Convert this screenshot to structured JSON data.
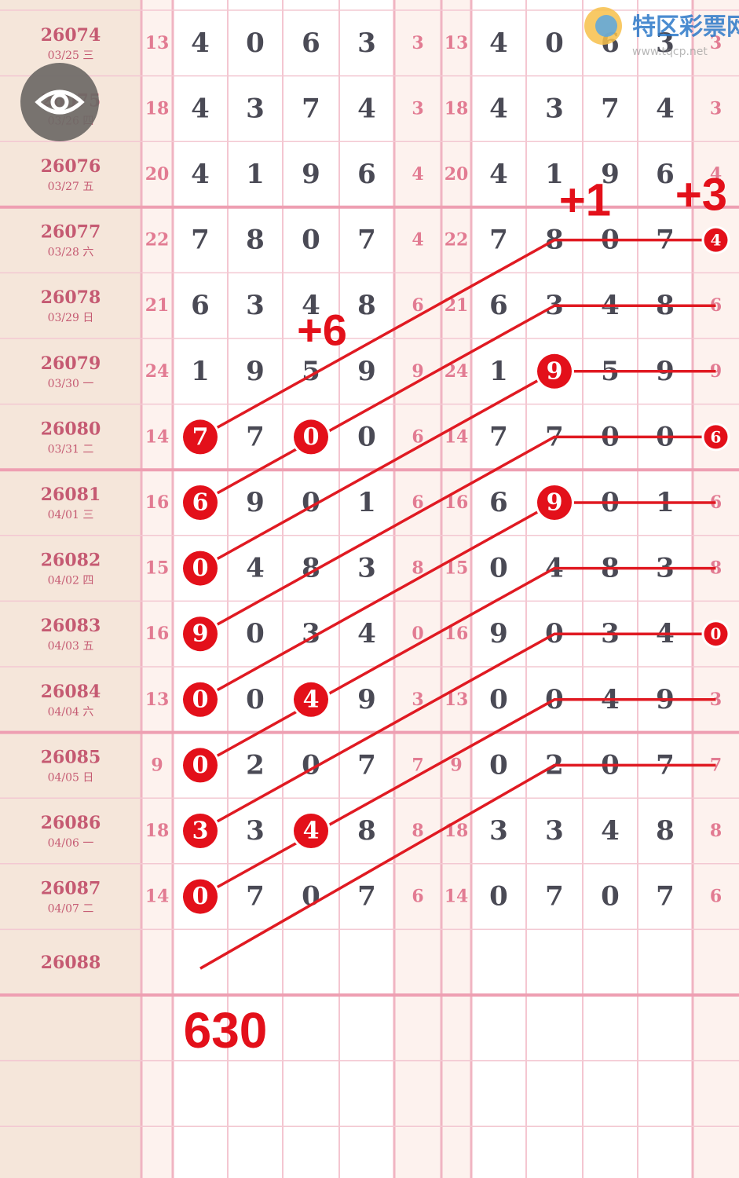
{
  "header": {
    "logo_title": "特区彩票网",
    "logo_url": "www.tqcp.net"
  },
  "table": {
    "rows": [
      {
        "issue": "26074",
        "date": "03/25 三",
        "sum": "13",
        "digits": [
          "4",
          "0",
          "6",
          "3"
        ],
        "tail": "3",
        "sum2": "13",
        "digits2": [
          "4",
          "0",
          "6",
          "3"
        ],
        "tail2": "3"
      },
      {
        "issue": "26075",
        "date": "03/26 四",
        "sum": "18",
        "digits": [
          "4",
          "3",
          "7",
          "4"
        ],
        "tail": "3",
        "sum2": "18",
        "digits2": [
          "4",
          "3",
          "7",
          "4"
        ],
        "tail2": "3"
      },
      {
        "issue": "26076",
        "date": "03/27 五",
        "sum": "20",
        "digits": [
          "4",
          "1",
          "9",
          "6"
        ],
        "tail": "4",
        "sum2": "20",
        "digits2": [
          "4",
          "1",
          "9",
          "6"
        ],
        "tail2": "4"
      },
      {
        "issue": "26077",
        "date": "03/28 六",
        "sum": "22",
        "digits": [
          "7",
          "8",
          "0",
          "7"
        ],
        "tail": "4",
        "sum2": "22",
        "digits2": [
          "7",
          "8",
          "0",
          "7"
        ],
        "tail2": "4"
      },
      {
        "issue": "26078",
        "date": "03/29 日",
        "sum": "21",
        "digits": [
          "6",
          "3",
          "4",
          "8"
        ],
        "tail": "6",
        "sum2": "21",
        "digits2": [
          "6",
          "3",
          "4",
          "8"
        ],
        "tail2": "6"
      },
      {
        "issue": "26079",
        "date": "03/30 一",
        "sum": "24",
        "digits": [
          "1",
          "9",
          "5",
          "9"
        ],
        "tail": "9",
        "sum2": "24",
        "digits2": [
          "1",
          "9",
          "5",
          "9"
        ],
        "tail2": "9"
      },
      {
        "issue": "26080",
        "date": "03/31 二",
        "sum": "14",
        "digits": [
          "7",
          "7",
          "0",
          "0"
        ],
        "tail": "6",
        "sum2": "14",
        "digits2": [
          "7",
          "7",
          "0",
          "0"
        ],
        "tail2": "6"
      },
      {
        "issue": "26081",
        "date": "04/01 三",
        "sum": "16",
        "digits": [
          "6",
          "9",
          "0",
          "1"
        ],
        "tail": "6",
        "sum2": "16",
        "digits2": [
          "6",
          "9",
          "0",
          "1"
        ],
        "tail2": "6"
      },
      {
        "issue": "26082",
        "date": "04/02 四",
        "sum": "15",
        "digits": [
          "0",
          "4",
          "8",
          "3"
        ],
        "tail": "8",
        "sum2": "15",
        "digits2": [
          "0",
          "4",
          "8",
          "3"
        ],
        "tail2": "8"
      },
      {
        "issue": "26083",
        "date": "04/03 五",
        "sum": "16",
        "digits": [
          "9",
          "0",
          "3",
          "4"
        ],
        "tail": "0",
        "sum2": "16",
        "digits2": [
          "9",
          "0",
          "3",
          "4"
        ],
        "tail2": "0"
      },
      {
        "issue": "26084",
        "date": "04/04 六",
        "sum": "13",
        "digits": [
          "0",
          "0",
          "4",
          "9"
        ],
        "tail": "3",
        "sum2": "13",
        "digits2": [
          "0",
          "0",
          "4",
          "9"
        ],
        "tail2": "3"
      },
      {
        "issue": "26085",
        "date": "04/05 日",
        "sum": "9",
        "digits": [
          "0",
          "2",
          "0",
          "7"
        ],
        "tail": "7",
        "sum2": "9",
        "digits2": [
          "0",
          "2",
          "0",
          "7"
        ],
        "tail2": "7"
      },
      {
        "issue": "26086",
        "date": "04/06 一",
        "sum": "18",
        "digits": [
          "3",
          "3",
          "4",
          "8"
        ],
        "tail": "8",
        "sum2": "18",
        "digits2": [
          "3",
          "3",
          "4",
          "8"
        ],
        "tail2": "8"
      },
      {
        "issue": "26087",
        "date": "04/07 二",
        "sum": "14",
        "digits": [
          "0",
          "7",
          "0",
          "7"
        ],
        "tail": "6",
        "sum2": "14",
        "digits2": [
          "0",
          "7",
          "0",
          "7"
        ],
        "tail2": "6"
      },
      {
        "issue": "26088"
      }
    ]
  },
  "annotations": {
    "plus_a": "+1",
    "plus_b": "+3",
    "plus_c": "+6",
    "result": "630"
  }
}
